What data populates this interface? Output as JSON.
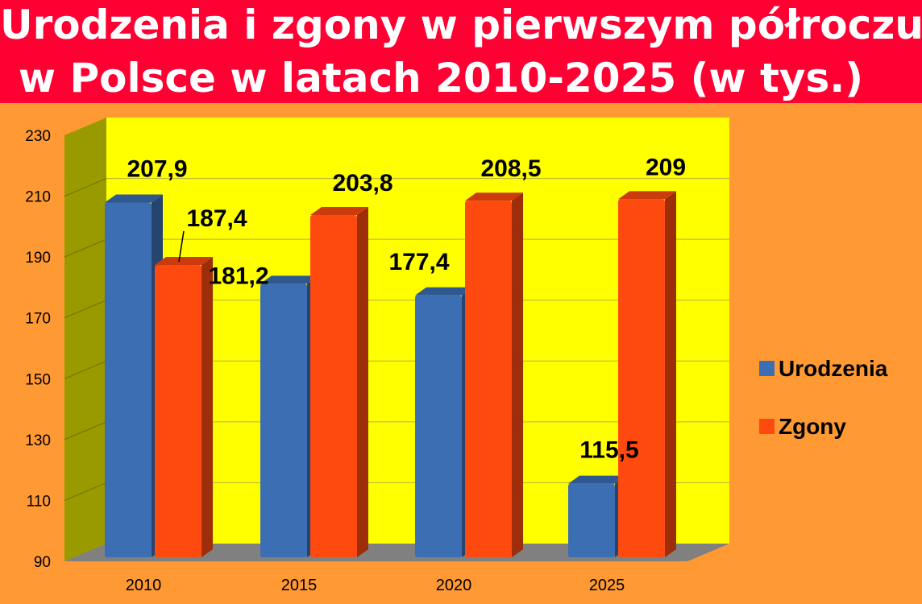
{
  "title": {
    "line1": "Urodzenia i zgony w pierwszym półroczu",
    "line2": "w Polsce w latach 2010-2025 (w tys.)"
  },
  "colors": {
    "background": "#ff9933",
    "title_banner": "#ff0033",
    "plot_wall": "#ffff00",
    "side_wall": "#999900",
    "floor": "#808080",
    "urodzenia": "#3c6eb4",
    "zgony": "#ff4a0f"
  },
  "chart_data": {
    "type": "bar",
    "title": "Urodzenia i zgony w pierwszym półroczu w Polsce w latach 2010-2025 (w tys.)",
    "categories": [
      "2010",
      "2015",
      "2020",
      "2025"
    ],
    "series": [
      {
        "name": "Urodzenia",
        "values": [
          207.9,
          181.2,
          177.4,
          115.5
        ],
        "labels": [
          "207,9",
          "181,2",
          "177,4",
          "115,5"
        ]
      },
      {
        "name": "Zgony",
        "values": [
          187.4,
          203.8,
          208.5,
          209
        ],
        "labels": [
          "187,4",
          "203,8",
          "208,5",
          "209"
        ]
      }
    ],
    "ylim": [
      90,
      230
    ],
    "yticks": [
      "90",
      "110",
      "130",
      "150",
      "170",
      "190",
      "210",
      "230"
    ],
    "grid": true,
    "legend_position": "right",
    "style": "3d"
  },
  "legend": [
    {
      "label": "Urodzenia",
      "color": "#3c6eb4"
    },
    {
      "label": "Zgony",
      "color": "#ff4a0f"
    }
  ]
}
